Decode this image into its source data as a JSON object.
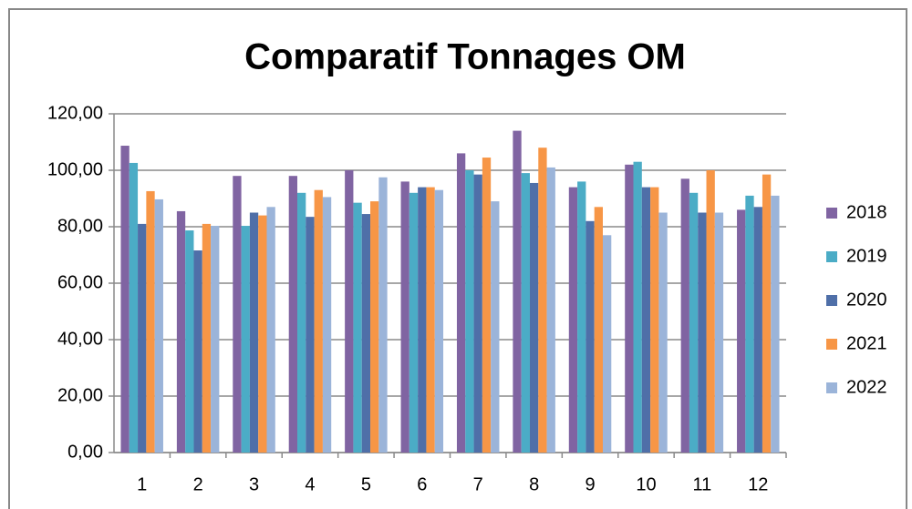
{
  "chart_data": {
    "type": "bar",
    "title": "Comparatif Tonnages OM",
    "categories": [
      "1",
      "2",
      "3",
      "4",
      "5",
      "6",
      "7",
      "8",
      "9",
      "10",
      "11",
      "12"
    ],
    "series": [
      {
        "name": "2018",
        "color": "#8064a2",
        "values": [
          108.7,
          85.5,
          98,
          98,
          100,
          96,
          106,
          114,
          94,
          102,
          97,
          86
        ]
      },
      {
        "name": "2019",
        "color": "#4bacc6",
        "values": [
          102.6,
          78.7,
          80.3,
          92,
          88.5,
          92,
          100,
          99,
          96,
          103,
          92,
          91
        ]
      },
      {
        "name": "2020",
        "color": "#4f6fa8",
        "values": [
          81,
          71.6,
          85,
          83.5,
          84.5,
          94,
          98.5,
          95.5,
          82,
          94,
          85,
          87
        ]
      },
      {
        "name": "2021",
        "color": "#f79646",
        "values": [
          92.6,
          81,
          84,
          93,
          89,
          94,
          104.5,
          108,
          87,
          94,
          100,
          98.5
        ]
      },
      {
        "name": "2022",
        "color": "#9bb4d9",
        "values": [
          89.7,
          80.3,
          87,
          90.5,
          97.5,
          93,
          89,
          101,
          77,
          85,
          85,
          91
        ]
      }
    ],
    "ylim": [
      0,
      120
    ],
    "yticks": [
      {
        "value": 0,
        "label": "0,00"
      },
      {
        "value": 20,
        "label": "20,00"
      },
      {
        "value": 40,
        "label": "40,00"
      },
      {
        "value": 60,
        "label": "60,00"
      },
      {
        "value": 80,
        "label": "80,00"
      },
      {
        "value": 100,
        "label": "100,00"
      },
      {
        "value": 120,
        "label": "120,00"
      }
    ],
    "grid": true
  }
}
